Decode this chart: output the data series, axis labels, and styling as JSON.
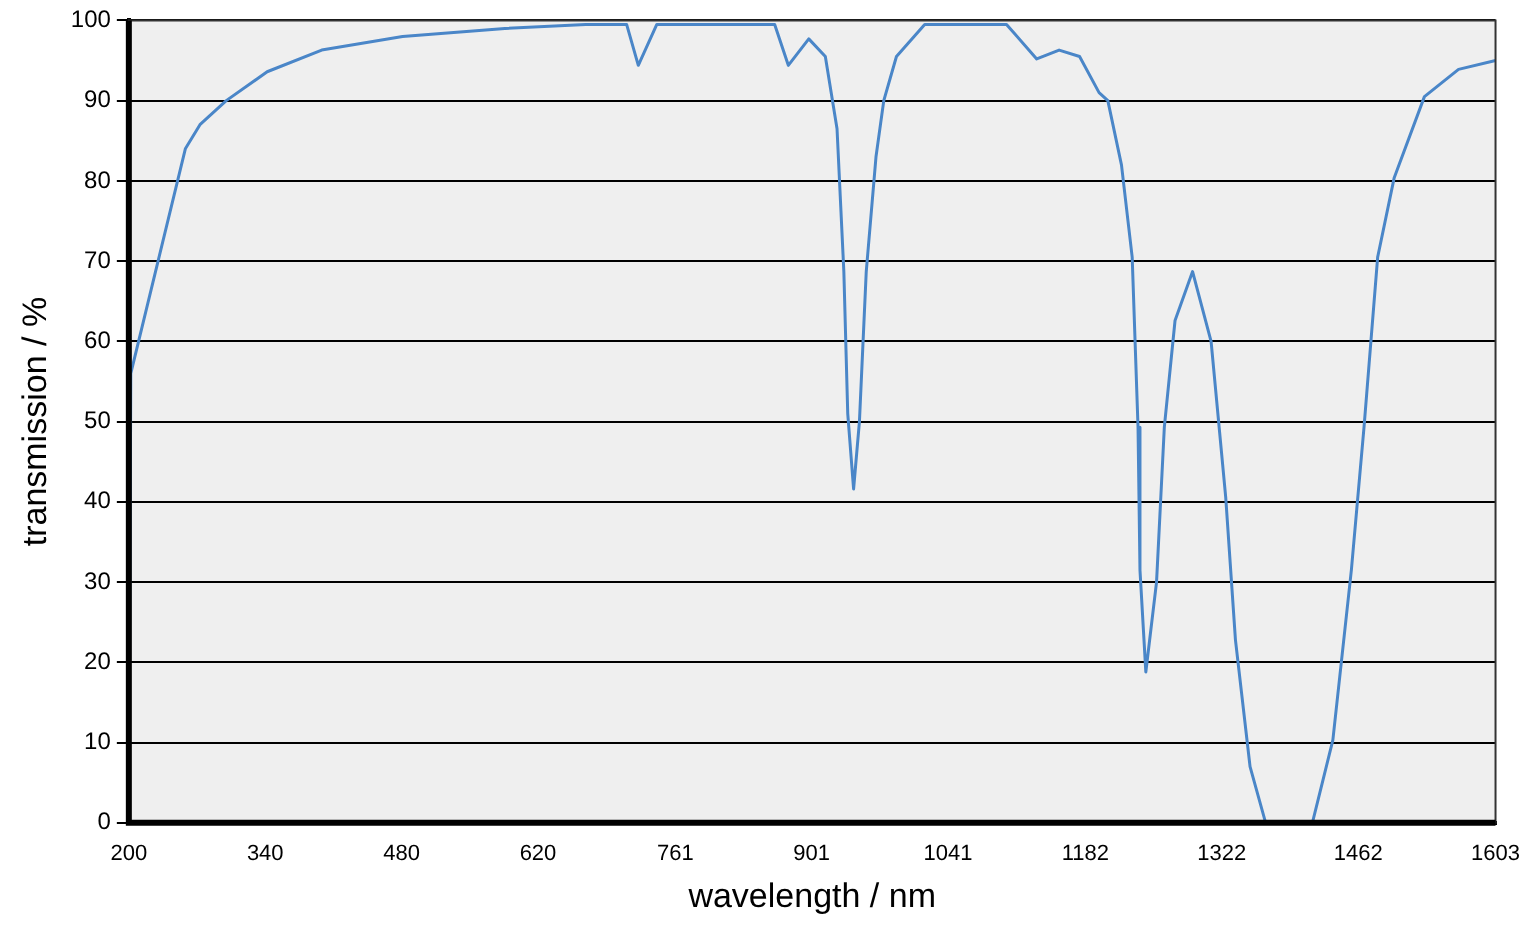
{
  "chart_data": {
    "type": "line",
    "xlabel": "wavelength / nm",
    "ylabel": "transmission / %",
    "x": [
      200,
      202,
      231,
      258,
      273,
      300,
      342,
      398,
      481,
      586,
      669,
      711,
      723,
      742,
      863,
      877,
      898,
      915,
      927,
      934,
      938,
      944,
      950,
      957,
      967,
      975,
      988,
      1017,
      1101,
      1132,
      1155,
      1176,
      1196,
      1205,
      1219,
      1230,
      1236,
      1238,
      1244,
      1255,
      1263,
      1274,
      1292,
      1311,
      1326,
      1336,
      1351,
      1367,
      1415,
      1436,
      1455,
      1468,
      1482,
      1499,
      1530,
      1565,
      1603
    ],
    "series": [
      {
        "color": "#4a86c8",
        "values": [
          0,
          56,
          70.5,
          84,
          87,
          90,
          93.6,
          96.3,
          98,
          99,
          99.5,
          99.5,
          94.4,
          99.5,
          99.5,
          94.4,
          97.7,
          95.5,
          86.5,
          68.7,
          51,
          41.6,
          50,
          68.7,
          83,
          90,
          95.5,
          99.5,
          99.5,
          95.2,
          96.3,
          95.5,
          91,
          90,
          82,
          70.5,
          49.3,
          31.5,
          18.8,
          30,
          49.3,
          62.6,
          68.7,
          60,
          40.6,
          22.8,
          7,
          0,
          0,
          10.3,
          31.5,
          49.3,
          70.5,
          80.4,
          90.5,
          93.9,
          95
        ]
      }
    ],
    "xlim": [
      200,
      1603
    ],
    "xticks": [
      200,
      340,
      480,
      620,
      761,
      901,
      1041,
      1182,
      1322,
      1462,
      1603
    ],
    "ylim": [
      0,
      100
    ],
    "yticks": [
      0,
      10,
      20,
      30,
      40,
      50,
      60,
      70,
      80,
      90,
      100
    ],
    "grid": "y",
    "legend": false,
    "marker": "none",
    "line_style": "solid"
  }
}
